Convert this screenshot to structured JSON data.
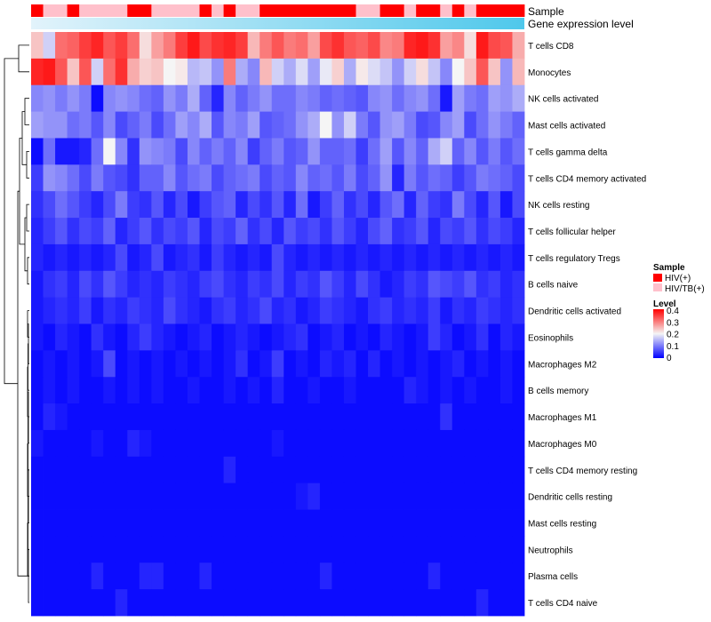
{
  "chart_data": {
    "type": "heatmap",
    "annotation_tracks": [
      {
        "name": "Sample",
        "label": "Sample"
      },
      {
        "name": "Gene expression level",
        "label": "Gene expression level"
      }
    ],
    "rows": [
      "T cells CD8",
      "Monocytes",
      "NK cells activated",
      "Mast cells activated",
      "T cells gamma delta",
      "T cells CD4 memory activated",
      "NK cells resting",
      "T cells follicular helper",
      "T cells regulatory  Tregs",
      "B cells naive",
      "Dendritic cells activated",
      "Eosinophils",
      "Macrophages M2",
      "B cells memory",
      "Macrophages M1",
      "Macrophages M0",
      "T cells CD4 memory resting",
      "Dendritic cells resting",
      "Mast cells resting",
      "Neutrophils",
      "Plasma cells",
      "T cells CD4 naive"
    ],
    "sample_groups": [
      "HIV(+)",
      "HIV/TB(+)",
      "HIV/TB(+)",
      "HIV(+)",
      "HIV/TB(+)",
      "HIV/TB(+)",
      "HIV/TB(+)",
      "HIV/TB(+)",
      "HIV(+)",
      "HIV(+)",
      "HIV/TB(+)",
      "HIV/TB(+)",
      "HIV/TB(+)",
      "HIV/TB(+)",
      "HIV(+)",
      "HIV/TB(+)",
      "HIV(+)",
      "HIV/TB(+)",
      "HIV/TB(+)",
      "HIV(+)",
      "HIV(+)",
      "HIV(+)",
      "HIV(+)",
      "HIV(+)",
      "HIV(+)",
      "HIV(+)",
      "HIV(+)",
      "HIV/TB(+)",
      "HIV/TB(+)",
      "HIV(+)",
      "HIV(+)",
      "HIV/TB(+)",
      "HIV(+)",
      "HIV(+)",
      "HIV/TB(+)",
      "HIV(+)",
      "HIV/TB(+)",
      "HIV(+)",
      "HIV(+)",
      "HIV(+)",
      "HIV(+)"
    ],
    "values": [
      [
        0.24,
        0.17,
        0.31,
        0.32,
        0.35,
        0.37,
        0.33,
        0.35,
        0.31,
        0.22,
        0.27,
        0.3,
        0.35,
        0.38,
        0.34,
        0.36,
        0.37,
        0.35,
        0.25,
        0.3,
        0.33,
        0.3,
        0.31,
        0.27,
        0.34,
        0.36,
        0.33,
        0.32,
        0.34,
        0.29,
        0.3,
        0.37,
        0.38,
        0.36,
        0.27,
        0.29,
        0.22,
        0.38,
        0.34,
        0.33,
        0.26
      ],
      [
        0.37,
        0.38,
        0.33,
        0.24,
        0.33,
        0.17,
        0.31,
        0.36,
        0.26,
        0.23,
        0.24,
        0.2,
        0.21,
        0.15,
        0.16,
        0.12,
        0.3,
        0.14,
        0.11,
        0.25,
        0.17,
        0.14,
        0.18,
        0.13,
        0.19,
        0.23,
        0.14,
        0.21,
        0.18,
        0.16,
        0.12,
        0.17,
        0.22,
        0.16,
        0.11,
        0.2,
        0.24,
        0.33,
        0.24,
        0.12,
        0.25
      ],
      [
        0.11,
        0.12,
        0.1,
        0.12,
        0.1,
        0.01,
        0.11,
        0.12,
        0.11,
        0.09,
        0.08,
        0.12,
        0.1,
        0.14,
        0.08,
        0.03,
        0.11,
        0.08,
        0.1,
        0.12,
        0.09,
        0.09,
        0.11,
        0.1,
        0.08,
        0.09,
        0.08,
        0.07,
        0.11,
        0.12,
        0.09,
        0.11,
        0.12,
        0.09,
        0.02,
        0.13,
        0.1,
        0.09,
        0.13,
        0.12,
        0.14
      ],
      [
        0.13,
        0.12,
        0.12,
        0.09,
        0.1,
        0.07,
        0.11,
        0.06,
        0.08,
        0.1,
        0.06,
        0.09,
        0.13,
        0.11,
        0.14,
        0.07,
        0.11,
        0.1,
        0.13,
        0.07,
        0.08,
        0.09,
        0.12,
        0.14,
        0.2,
        0.12,
        0.17,
        0.1,
        0.07,
        0.12,
        0.13,
        0.1,
        0.06,
        0.07,
        0.11,
        0.13,
        0.06,
        0.09,
        0.12,
        0.1,
        0.08
      ],
      [
        0.01,
        0.09,
        0.02,
        0.02,
        0.03,
        0.09,
        0.2,
        0.11,
        0.04,
        0.12,
        0.11,
        0.1,
        0.06,
        0.11,
        0.08,
        0.1,
        0.08,
        0.11,
        0.05,
        0.08,
        0.1,
        0.07,
        0.08,
        0.12,
        0.08,
        0.08,
        0.09,
        0.05,
        0.09,
        0.13,
        0.07,
        0.11,
        0.08,
        0.14,
        0.17,
        0.08,
        0.11,
        0.07,
        0.1,
        0.07,
        0.09
      ],
      [
        0.05,
        0.12,
        0.11,
        0.09,
        0.06,
        0.1,
        0.07,
        0.06,
        0.04,
        0.08,
        0.08,
        0.11,
        0.07,
        0.09,
        0.1,
        0.06,
        0.08,
        0.09,
        0.1,
        0.06,
        0.08,
        0.07,
        0.11,
        0.08,
        0.09,
        0.07,
        0.1,
        0.06,
        0.08,
        0.12,
        0.03,
        0.1,
        0.07,
        0.09,
        0.08,
        0.05,
        0.07,
        0.1,
        0.09,
        0.08,
        0.06
      ],
      [
        0.04,
        0.06,
        0.09,
        0.07,
        0.05,
        0.03,
        0.06,
        0.1,
        0.05,
        0.04,
        0.07,
        0.03,
        0.06,
        0.02,
        0.05,
        0.07,
        0.08,
        0.03,
        0.06,
        0.04,
        0.07,
        0.03,
        0.09,
        0.02,
        0.05,
        0.08,
        0.04,
        0.06,
        0.03,
        0.07,
        0.09,
        0.03,
        0.08,
        0.05,
        0.04,
        0.1,
        0.06,
        0.03,
        0.07,
        0.02,
        0.06
      ],
      [
        0.03,
        0.05,
        0.07,
        0.04,
        0.06,
        0.05,
        0.08,
        0.03,
        0.05,
        0.07,
        0.04,
        0.06,
        0.05,
        0.07,
        0.03,
        0.06,
        0.05,
        0.08,
        0.04,
        0.06,
        0.03,
        0.07,
        0.05,
        0.06,
        0.04,
        0.07,
        0.05,
        0.03,
        0.06,
        0.08,
        0.04,
        0.05,
        0.07,
        0.03,
        0.06,
        0.05,
        0.07,
        0.04,
        0.06,
        0.05,
        0.03
      ],
      [
        0.03,
        0.02,
        0.03,
        0.02,
        0.03,
        0.02,
        0.03,
        0.06,
        0.02,
        0.03,
        0.06,
        0.02,
        0.03,
        0.04,
        0.02,
        0.05,
        0.03,
        0.02,
        0.03,
        0.02,
        0.06,
        0.03,
        0.02,
        0.03,
        0.02,
        0.03,
        0.02,
        0.03,
        0.02,
        0.03,
        0.02,
        0.03,
        0.02,
        0.03,
        0.02,
        0.03,
        0.02,
        0.03,
        0.02,
        0.03,
        0.02
      ],
      [
        0.02,
        0.04,
        0.05,
        0.03,
        0.06,
        0.04,
        0.07,
        0.05,
        0.03,
        0.04,
        0.03,
        0.05,
        0.04,
        0.03,
        0.05,
        0.06,
        0.04,
        0.03,
        0.05,
        0.04,
        0.06,
        0.03,
        0.05,
        0.04,
        0.07,
        0.05,
        0.03,
        0.06,
        0.04,
        0.02,
        0.03,
        0.05,
        0.04,
        0.07,
        0.06,
        0.05,
        0.07,
        0.04,
        0.05,
        0.03,
        0.04
      ],
      [
        0.02,
        0.03,
        0.04,
        0.03,
        0.05,
        0.02,
        0.04,
        0.03,
        0.05,
        0.04,
        0.03,
        0.06,
        0.04,
        0.03,
        0.02,
        0.04,
        0.05,
        0.03,
        0.04,
        0.06,
        0.03,
        0.04,
        0.02,
        0.03,
        0.05,
        0.04,
        0.03,
        0.02,
        0.04,
        0.05,
        0.03,
        0.04,
        0.03,
        0.05,
        0.02,
        0.04,
        0.03,
        0.05,
        0.04,
        0.03,
        0.04
      ],
      [
        0.02,
        0.01,
        0.03,
        0.02,
        0.01,
        0.04,
        0.02,
        0.01,
        0.03,
        0.05,
        0.03,
        0.02,
        0.01,
        0.02,
        0.03,
        0.01,
        0.02,
        0.03,
        0.02,
        0.01,
        0.02,
        0.03,
        0.04,
        0.01,
        0.02,
        0.03,
        0.01,
        0.02,
        0.01,
        0.03,
        0.02,
        0.01,
        0.02,
        0.05,
        0.03,
        0.01,
        0.02,
        0.04,
        0.01,
        0.03,
        0.02
      ],
      [
        0.01,
        0.02,
        0.01,
        0.02,
        0.01,
        0.02,
        0.06,
        0.01,
        0.02,
        0.01,
        0.02,
        0.01,
        0.02,
        0.01,
        0.02,
        0.01,
        0.02,
        0.04,
        0.01,
        0.02,
        0.05,
        0.01,
        0.02,
        0.01,
        0.03,
        0.02,
        0.03,
        0.01,
        0.03,
        0.01,
        0.02,
        0.01,
        0.02,
        0.01,
        0.02,
        0.03,
        0.01,
        0.02,
        0.01,
        0.02,
        0.01
      ],
      [
        0.01,
        0.02,
        0.01,
        0.02,
        0.01,
        0.01,
        0.02,
        0.01,
        0.02,
        0.01,
        0.02,
        0.01,
        0.01,
        0.02,
        0.01,
        0.01,
        0.02,
        0.01,
        0.02,
        0.01,
        0.03,
        0.01,
        0.01,
        0.02,
        0.01,
        0.01,
        0.02,
        0.01,
        0.01,
        0.01,
        0.01,
        0.03,
        0.02,
        0.01,
        0.02,
        0.01,
        0.02,
        0.01,
        0.01,
        0.02,
        0.01
      ],
      [
        0.01,
        0.03,
        0.02,
        0.01,
        0.01,
        0.01,
        0.01,
        0.01,
        0.01,
        0.01,
        0.01,
        0.01,
        0.01,
        0.01,
        0.01,
        0.01,
        0.01,
        0.01,
        0.01,
        0.01,
        0.01,
        0.01,
        0.01,
        0.01,
        0.01,
        0.01,
        0.01,
        0.01,
        0.01,
        0.01,
        0.01,
        0.01,
        0.01,
        0.01,
        0.04,
        0.01,
        0.01,
        0.01,
        0.01,
        0.01,
        0.01
      ],
      [
        0.02,
        0.01,
        0.01,
        0.01,
        0.01,
        0.02,
        0.01,
        0.01,
        0.03,
        0.02,
        0.01,
        0.01,
        0.01,
        0.01,
        0.01,
        0.01,
        0.01,
        0.01,
        0.01,
        0.01,
        0.02,
        0.01,
        0.01,
        0.01,
        0.01,
        0.01,
        0.01,
        0.01,
        0.01,
        0.01,
        0.01,
        0.01,
        0.01,
        0.01,
        0.01,
        0.01,
        0.01,
        0.01,
        0.01,
        0.01,
        0.01
      ],
      [
        0.01,
        0.01,
        0.01,
        0.01,
        0.01,
        0.01,
        0.01,
        0.01,
        0.01,
        0.01,
        0.01,
        0.01,
        0.01,
        0.01,
        0.01,
        0.01,
        0.03,
        0.01,
        0.01,
        0.01,
        0.01,
        0.01,
        0.01,
        0.01,
        0.01,
        0.01,
        0.01,
        0.01,
        0.01,
        0.01,
        0.01,
        0.01,
        0.01,
        0.01,
        0.01,
        0.01,
        0.01,
        0.01,
        0.01,
        0.01,
        0.01
      ],
      [
        0.01,
        0.01,
        0.01,
        0.01,
        0.01,
        0.01,
        0.01,
        0.01,
        0.01,
        0.01,
        0.01,
        0.01,
        0.01,
        0.01,
        0.01,
        0.01,
        0.01,
        0.01,
        0.01,
        0.01,
        0.01,
        0.01,
        0.02,
        0.03,
        0.01,
        0.01,
        0.01,
        0.01,
        0.01,
        0.01,
        0.01,
        0.01,
        0.01,
        0.01,
        0.01,
        0.01,
        0.01,
        0.01,
        0.01,
        0.01,
        0.01
      ],
      [
        0.01,
        0.01,
        0.01,
        0.01,
        0.01,
        0.01,
        0.01,
        0.01,
        0.01,
        0.01,
        0.01,
        0.01,
        0.01,
        0.01,
        0.01,
        0.01,
        0.01,
        0.01,
        0.01,
        0.01,
        0.01,
        0.01,
        0.01,
        0.01,
        0.01,
        0.01,
        0.01,
        0.01,
        0.01,
        0.01,
        0.01,
        0.01,
        0.01,
        0.01,
        0.01,
        0.01,
        0.01,
        0.01,
        0.01,
        0.01,
        0.01
      ],
      [
        0.01,
        0.01,
        0.01,
        0.01,
        0.01,
        0.01,
        0.01,
        0.01,
        0.01,
        0.01,
        0.01,
        0.01,
        0.01,
        0.01,
        0.01,
        0.01,
        0.01,
        0.01,
        0.01,
        0.01,
        0.01,
        0.01,
        0.01,
        0.01,
        0.01,
        0.01,
        0.01,
        0.01,
        0.01,
        0.01,
        0.01,
        0.01,
        0.01,
        0.01,
        0.01,
        0.01,
        0.01,
        0.01,
        0.01,
        0.01,
        0.01
      ],
      [
        0.01,
        0.01,
        0.01,
        0.01,
        0.01,
        0.03,
        0.01,
        0.01,
        0.01,
        0.03,
        0.03,
        0.01,
        0.01,
        0.01,
        0.03,
        0.01,
        0.01,
        0.01,
        0.01,
        0.01,
        0.01,
        0.01,
        0.01,
        0.01,
        0.03,
        0.01,
        0.01,
        0.01,
        0.01,
        0.01,
        0.01,
        0.01,
        0.01,
        0.03,
        0.01,
        0.01,
        0.01,
        0.01,
        0.01,
        0.01,
        0.01
      ],
      [
        0.01,
        0.01,
        0.01,
        0.01,
        0.01,
        0.01,
        0.01,
        0.03,
        0.01,
        0.01,
        0.01,
        0.01,
        0.01,
        0.01,
        0.01,
        0.01,
        0.01,
        0.01,
        0.01,
        0.01,
        0.01,
        0.01,
        0.01,
        0.01,
        0.01,
        0.01,
        0.01,
        0.01,
        0.01,
        0.01,
        0.01,
        0.01,
        0.01,
        0.01,
        0.01,
        0.01,
        0.01,
        0.03,
        0.01,
        0.01,
        0.01
      ]
    ],
    "legend": {
      "sample_title": "Sample",
      "sample_entries": [
        {
          "label": "HIV(+)",
          "color": "#ff0000"
        },
        {
          "label": "HIV/TB(+)",
          "color": "#ffc0cb"
        }
      ],
      "level_title": "Level",
      "level_ticks": [
        "0.4",
        "0.3",
        "0.2",
        "0.1",
        "0"
      ],
      "level_range": [
        0,
        0.4
      ]
    },
    "colors": {
      "low": "#0000ff",
      "mid": "#f5f5f5",
      "high": "#ff0000",
      "expression_light": "#e2f3fb",
      "expression_dark": "#4fc8eb"
    }
  }
}
